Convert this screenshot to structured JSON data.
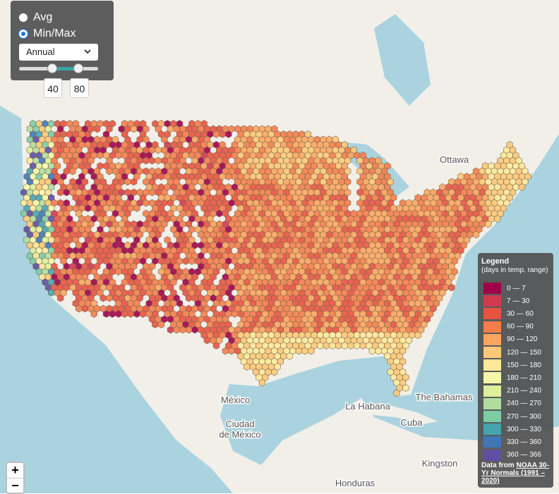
{
  "controls": {
    "options": [
      "Avg",
      "Min/Max"
    ],
    "period": "Annual",
    "range": [
      40,
      80
    ]
  },
  "legend": {
    "title": "Legend",
    "subtitle": "(days in temp. range)",
    "entries": [
      {
        "label": "0 — 7",
        "color": "#a0004a"
      },
      {
        "label": "7 — 30",
        "color": "#d2394f"
      },
      {
        "label": "30 — 60",
        "color": "#e8533f"
      },
      {
        "label": "60 — 90",
        "color": "#f57d4a"
      },
      {
        "label": "90 — 120",
        "color": "#fca55e"
      },
      {
        "label": "120 — 150",
        "color": "#fdc877"
      },
      {
        "label": "150 — 180",
        "color": "#fee89a"
      },
      {
        "label": "180 — 210",
        "color": "#f5f6a8"
      },
      {
        "label": "210 — 240",
        "color": "#dcef9a"
      },
      {
        "label": "240 — 270",
        "color": "#b0dd9e"
      },
      {
        "label": "270 — 300",
        "color": "#7ccca4"
      },
      {
        "label": "300 — 330",
        "color": "#46a3b0"
      },
      {
        "label": "330 — 360",
        "color": "#3f77b8"
      },
      {
        "label": "360 — 366",
        "color": "#5e4fa2"
      }
    ],
    "source": {
      "text": "Data from",
      "link": "NOAA 30-Yr Normals (1991 – 2020)"
    }
  },
  "map_labels": [
    "Ottawa",
    "México",
    "Ciudad de México",
    "La Habana",
    "The Bahamas",
    "Cuba",
    "Kingston",
    "Honduras"
  ],
  "zoom": {
    "in": "+",
    "out": "−"
  }
}
